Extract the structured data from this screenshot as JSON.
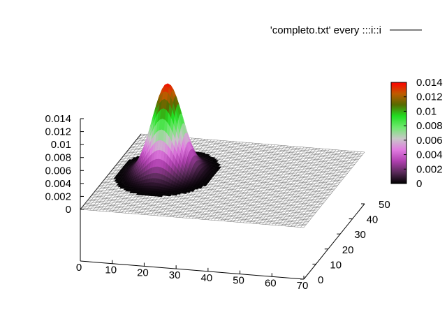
{
  "chart_data": {
    "type": "surface3d",
    "title": "",
    "xlabel": "",
    "ylabel": "",
    "zlabel": "",
    "legend": {
      "entry": "'completo.txt' every :::i::i",
      "placement": "top-right",
      "line_color": "#000000"
    },
    "xlim": [
      0,
      70
    ],
    "ylim": [
      0,
      50
    ],
    "zlim": [
      0,
      0.014
    ],
    "x_ticks": [
      "0",
      "10",
      "20",
      "30",
      "40",
      "50",
      "60",
      "70"
    ],
    "y_ticks": [
      "0",
      "10",
      "20",
      "30",
      "40",
      "50"
    ],
    "z_ticks": [
      "0",
      "0.002",
      "0.004",
      "0.006",
      "0.008",
      "0.01",
      "0.012",
      "0.014"
    ],
    "peak": {
      "x": 17,
      "y": 27,
      "z": 0.0138
    },
    "spread": 4.5,
    "colorbar": {
      "range": [
        0,
        0.014
      ],
      "ticks": [
        "0",
        "0.002",
        "0.004",
        "0.006",
        "0.008",
        "0.01",
        "0.012",
        "0.014"
      ],
      "palette": [
        "#000000",
        "#5a2a5a",
        "#b040b0",
        "#e07be0",
        "#c8c8c8",
        "#6ee86e",
        "#22dd22",
        "#556b00",
        "#c05a00",
        "#ff0000"
      ]
    },
    "grid": false
  }
}
